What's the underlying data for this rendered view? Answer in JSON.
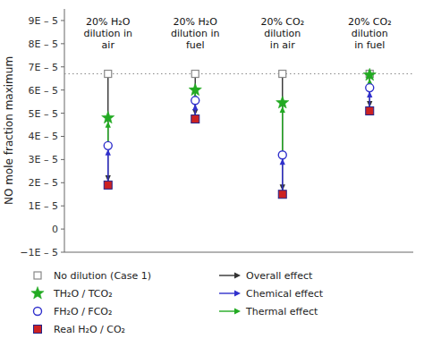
{
  "chart_data": {
    "type": "arrow_dot",
    "ylabel": "NO mole fraction maximum",
    "categories": [
      [
        "20% H₂O",
        "dilution in",
        "air"
      ],
      [
        "20% H₂O",
        "dilution in",
        "fuel"
      ],
      [
        "20% CO₂",
        "dilution",
        "in air"
      ],
      [
        "20% CO₂",
        "dilution",
        "in fuel"
      ]
    ],
    "ylim": [
      -1e-05,
      9.5e-05
    ],
    "yticks": [
      {
        "value": -1e-05,
        "label": "−1E – 5"
      },
      0,
      {
        "value": 1e-05,
        "label": "1E – 5"
      },
      {
        "value": 2e-05,
        "label": "2E – 5"
      },
      {
        "value": 3e-05,
        "label": "3E – 5"
      },
      {
        "value": 4e-05,
        "label": "4E – 5"
      },
      {
        "value": 5e-05,
        "label": "5E – 5"
      },
      {
        "value": 6e-05,
        "label": "6E – 5"
      },
      {
        "value": 7e-05,
        "label": "7E – 5"
      },
      {
        "value": 8e-05,
        "label": "8E – 5"
      },
      {
        "value": 9e-05,
        "label": "9E – 5"
      }
    ],
    "reference_line_y": 6.7e-05,
    "series": [
      {
        "name": "No dilution (Case 1)",
        "color": "#888888",
        "marker": "square-open",
        "values": [
          6.7e-05,
          6.7e-05,
          6.7e-05,
          6.7e-05
        ]
      },
      {
        "name": "TH₂O / TCO₂",
        "color": "#22aa22",
        "marker": "star",
        "values": [
          4.8e-05,
          6e-05,
          5.45e-05,
          6.65e-05
        ]
      },
      {
        "name": "FH₂O / FCO₂",
        "color": "#3030cc",
        "marker": "circle-open",
        "values": [
          3.6e-05,
          5.55e-05,
          3.2e-05,
          6.1e-05
        ]
      },
      {
        "name": "Real H₂O / CO₂",
        "color": "#cc2222",
        "marker": "square",
        "values": [
          1.9e-05,
          4.75e-05,
          1.5e-05,
          5.1e-05
        ]
      }
    ],
    "arrows": [
      {
        "name": "Overall effect",
        "color": "#333333"
      },
      {
        "name": "Chemical effect",
        "color": "#3030cc"
      },
      {
        "name": "Thermal effect",
        "color": "#22aa22"
      }
    ],
    "grid": false,
    "legend": "bottom"
  }
}
